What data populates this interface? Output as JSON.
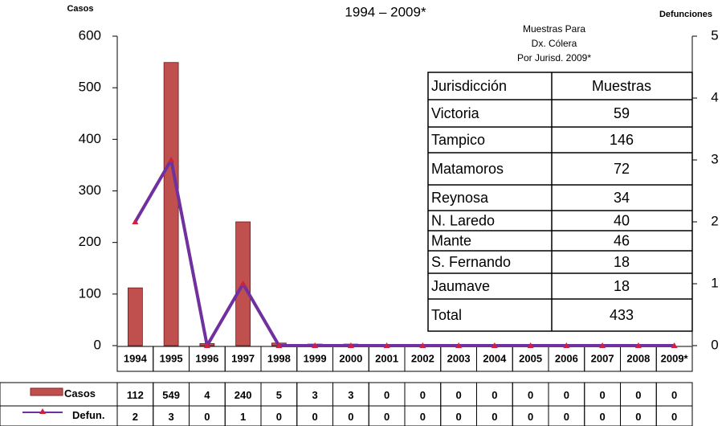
{
  "chart_data": {
    "type": "combo",
    "title": "1994 – 2009*",
    "y_label": "Casos",
    "y2_label": "Defunciones",
    "categories": [
      "1994",
      "1995",
      "1996",
      "1997",
      "1998",
      "1999",
      "2000",
      "2001",
      "2002",
      "2003",
      "2004",
      "2005",
      "2006",
      "2007",
      "2008",
      "2009*"
    ],
    "series": [
      {
        "name": "Casos",
        "type": "bar",
        "color": "#c0504d",
        "values": [
          112,
          549,
          4,
          240,
          5,
          3,
          3,
          0,
          0,
          0,
          0,
          0,
          0,
          0,
          0,
          0
        ]
      },
      {
        "name": "Defun.",
        "type": "line",
        "axis": "y2",
        "color": "#7030a0",
        "marker_color": "#d0203a",
        "values": [
          2,
          3,
          0,
          1,
          0,
          0,
          0,
          0,
          0,
          0,
          0,
          0,
          0,
          0,
          0,
          0
        ]
      }
    ],
    "ylim": [
      0,
      600
    ],
    "yticks": [
      0,
      100,
      200,
      300,
      400,
      500,
      600
    ],
    "y2lim": [
      0,
      5
    ],
    "y2ticks": [
      0,
      1,
      2,
      3,
      4,
      5
    ]
  },
  "inset_table": {
    "title": [
      "Muestras Para",
      "Dx. Cólera",
      "Por Jurisd.  2009*"
    ],
    "header": [
      "Jurisdicción",
      "Muestras"
    ],
    "rows": [
      [
        "Victoria",
        "59"
      ],
      [
        "Tampico",
        "146"
      ],
      [
        "Matamoros",
        "72"
      ],
      [
        "Reynosa",
        "34"
      ],
      [
        "N. Laredo",
        "40"
      ],
      [
        "Mante",
        "46"
      ],
      [
        "S. Fernando",
        "18"
      ],
      [
        "Jaumave",
        "18"
      ],
      [
        "Total",
        "433"
      ]
    ]
  }
}
